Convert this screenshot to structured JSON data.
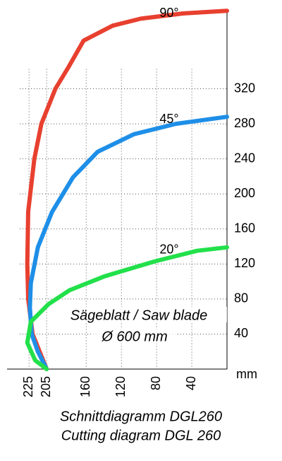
{
  "chart_data": {
    "type": "line",
    "caption": [
      "Schnittdiagramm DGL260",
      "Cutting diagram DGL 260"
    ],
    "annotation": [
      "Sägeblatt / Saw blade",
      "Ø 600 mm"
    ],
    "y_unit": "mm",
    "xlim": [
      250,
      0
    ],
    "ylim": [
      0,
      410
    ],
    "xticks": [
      225,
      205,
      160,
      120,
      80,
      40
    ],
    "xtick_colors": [
      "#e0362c",
      "#e0362c",
      "#000000",
      "#000000",
      "#000000",
      "#000000"
    ],
    "yticks": [
      40,
      80,
      120,
      160,
      200,
      240,
      280,
      320
    ],
    "grid": true,
    "series": [
      {
        "name": "90°",
        "color": "#e8402f",
        "x": [
          205,
          221,
          226,
          227,
          226,
          219,
          211,
          195,
          180,
          163,
          130,
          98,
          50,
          0
        ],
        "values": [
          0,
          40,
          80,
          120,
          180,
          240,
          280,
          320,
          345,
          375,
          392,
          400,
          406,
          409
        ]
      },
      {
        "name": "45°",
        "color": "#1e8fe8",
        "x": [
          205,
          215,
          222,
          224,
          223,
          215,
          199,
          175,
          147,
          106,
          58,
          0
        ],
        "values": [
          0,
          20,
          40,
          70,
          98,
          139,
          179,
          219,
          248,
          268,
          280,
          288
        ]
      },
      {
        "name": "20°",
        "color": "#22e04a",
        "x": [
          205,
          218,
          227,
          223,
          203,
          179,
          139,
          82,
          34,
          0
        ],
        "values": [
          0,
          10,
          30,
          54,
          74,
          90,
          106,
          123,
          135,
          139
        ]
      }
    ]
  }
}
